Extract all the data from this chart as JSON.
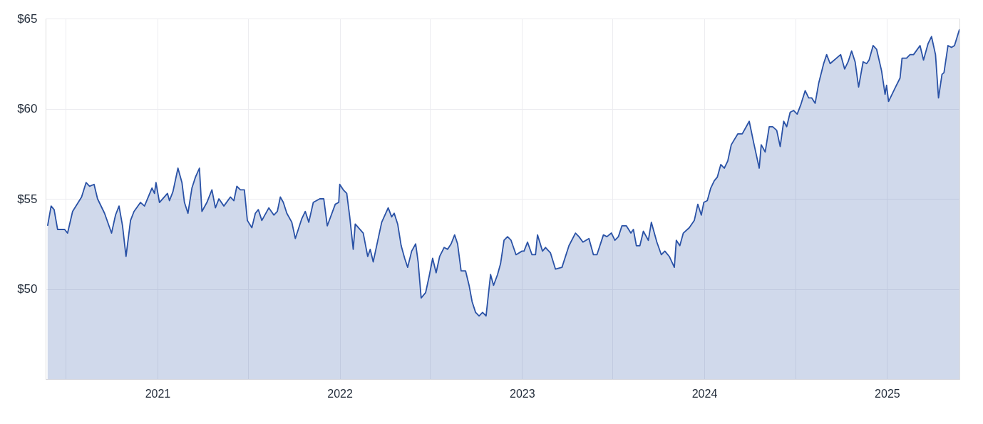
{
  "chart_data": {
    "type": "area",
    "x": [
      "2020-05-26",
      "2020-06-02",
      "2020-06-08",
      "2020-06-15",
      "2020-06-23",
      "2020-06-29",
      "2020-07-05",
      "2020-07-15",
      "2020-08-02",
      "2020-08-11",
      "2020-08-18",
      "2020-08-27",
      "2020-09-03",
      "2020-09-17",
      "2020-10-01",
      "2020-10-09",
      "2020-10-16",
      "2020-10-23",
      "2020-10-30",
      "2020-11-08",
      "2020-11-15",
      "2020-11-28",
      "2020-12-06",
      "2020-12-21",
      "2020-12-26",
      "2020-12-29",
      "2021-01-05",
      "2021-01-21",
      "2021-01-25",
      "2021-02-01",
      "2021-02-11",
      "2021-02-19",
      "2021-02-24",
      "2021-03-03",
      "2021-03-11",
      "2021-03-18",
      "2021-03-26",
      "2021-03-31",
      "2021-04-10",
      "2021-04-20",
      "2021-04-27",
      "2021-05-04",
      "2021-05-14",
      "2021-05-27",
      "2021-06-03",
      "2021-06-09",
      "2021-06-16",
      "2021-06-24",
      "2021-06-30",
      "2021-07-09",
      "2021-07-16",
      "2021-07-22",
      "2021-07-29",
      "2021-08-12",
      "2021-08-22",
      "2021-08-29",
      "2021-09-04",
      "2021-09-10",
      "2021-09-17",
      "2021-09-27",
      "2021-10-04",
      "2021-10-17",
      "2021-10-24",
      "2021-10-31",
      "2021-11-09",
      "2021-11-22",
      "2021-11-30",
      "2021-12-07",
      "2021-12-23",
      "2021-12-30",
      "2022-01-01",
      "2022-01-08",
      "2022-01-15",
      "2022-01-21",
      "2022-01-28",
      "2022-02-01",
      "2022-02-17",
      "2022-02-26",
      "2022-03-03",
      "2022-03-09",
      "2022-03-19",
      "2022-03-26",
      "2022-04-08",
      "2022-04-15",
      "2022-04-20",
      "2022-04-27",
      "2022-05-04",
      "2022-05-11",
      "2022-05-17",
      "2022-05-25",
      "2022-06-02",
      "2022-06-07",
      "2022-06-13",
      "2022-06-22",
      "2022-06-29",
      "2022-07-06",
      "2022-07-13",
      "2022-07-20",
      "2022-07-29",
      "2022-08-05",
      "2022-08-12",
      "2022-08-19",
      "2022-08-25",
      "2022-09-01",
      "2022-09-10",
      "2022-09-17",
      "2022-09-23",
      "2022-09-30",
      "2022-10-07",
      "2022-10-14",
      "2022-10-21",
      "2022-10-30",
      "2022-11-05",
      "2022-11-13",
      "2022-11-19",
      "2022-11-26",
      "2022-12-03",
      "2022-12-10",
      "2022-12-20",
      "2023-01-01",
      "2023-01-05",
      "2023-01-12",
      "2023-01-21",
      "2023-01-28",
      "2023-02-01",
      "2023-02-11",
      "2023-02-17",
      "2023-02-27",
      "2023-03-09",
      "2023-03-22",
      "2023-04-05",
      "2023-04-18",
      "2023-04-25",
      "2023-05-03",
      "2023-05-15",
      "2023-05-24",
      "2023-05-31",
      "2023-06-13",
      "2023-06-20",
      "2023-06-29",
      "2023-07-06",
      "2023-07-13",
      "2023-07-20",
      "2023-07-29",
      "2023-08-07",
      "2023-08-12",
      "2023-08-18",
      "2023-08-25",
      "2023-09-01",
      "2023-09-11",
      "2023-09-17",
      "2023-09-28",
      "2023-10-07",
      "2023-10-14",
      "2023-10-23",
      "2023-11-02",
      "2023-11-06",
      "2023-11-13",
      "2023-11-20",
      "2023-12-02",
      "2023-12-12",
      "2023-12-19",
      "2023-12-26",
      "2023-12-31",
      "2024-01-07",
      "2024-01-14",
      "2024-01-21",
      "2024-01-27",
      "2024-02-03",
      "2024-02-10",
      "2024-02-17",
      "2024-02-24",
      "2024-03-08",
      "2024-03-17",
      "2024-03-25",
      "2024-03-31",
      "2024-04-09",
      "2024-04-20",
      "2024-04-24",
      "2024-05-02",
      "2024-05-10",
      "2024-05-17",
      "2024-05-25",
      "2024-06-01",
      "2024-06-08",
      "2024-06-14",
      "2024-06-21",
      "2024-06-28",
      "2024-07-05",
      "2024-07-12",
      "2024-07-21",
      "2024-07-28",
      "2024-08-03",
      "2024-08-10",
      "2024-08-17",
      "2024-08-27",
      "2024-09-02",
      "2024-09-09",
      "2024-09-30",
      "2024-10-08",
      "2024-10-15",
      "2024-10-22",
      "2024-10-29",
      "2024-11-05",
      "2024-11-14",
      "2024-11-21",
      "2024-11-26",
      "2024-12-04",
      "2024-12-11",
      "2024-12-21",
      "2024-12-28",
      "2024-12-31",
      "2025-01-04",
      "2025-01-18",
      "2025-01-27",
      "2025-01-31",
      "2025-02-09",
      "2025-02-16",
      "2025-02-23",
      "2025-03-08",
      "2025-03-15",
      "2025-03-24",
      "2025-03-31",
      "2025-04-08",
      "2025-04-14",
      "2025-04-21",
      "2025-04-25",
      "2025-05-03",
      "2025-05-10",
      "2025-05-16",
      "2025-05-26"
    ],
    "series": [
      {
        "color": "#2a52a6",
        "values": [
          53.5,
          54.6,
          54.4,
          53.3,
          53.3,
          53.3,
          53.1,
          54.3,
          55.1,
          55.9,
          55.7,
          55.8,
          55.0,
          54.2,
          53.1,
          54.1,
          54.6,
          53.5,
          51.8,
          53.8,
          54.3,
          54.8,
          54.6,
          55.6,
          55.3,
          55.9,
          54.8,
          55.3,
          54.9,
          55.4,
          56.7,
          55.9,
          54.8,
          54.2,
          55.6,
          56.2,
          56.7,
          54.3,
          54.8,
          55.5,
          54.5,
          55.0,
          54.6,
          55.1,
          54.9,
          55.7,
          55.5,
          55.5,
          53.8,
          53.4,
          54.2,
          54.4,
          53.8,
          54.5,
          54.1,
          54.3,
          55.1,
          54.8,
          54.2,
          53.7,
          52.8,
          53.9,
          54.3,
          53.7,
          54.8,
          55.0,
          55.0,
          53.5,
          54.7,
          54.8,
          55.8,
          55.5,
          55.3,
          54.0,
          52.2,
          53.6,
          53.1,
          51.8,
          52.2,
          51.5,
          52.8,
          53.7,
          54.5,
          54.0,
          54.2,
          53.6,
          52.4,
          51.7,
          51.2,
          52.1,
          52.5,
          51.5,
          49.5,
          49.8,
          50.7,
          51.7,
          50.9,
          51.8,
          52.3,
          52.2,
          52.5,
          53.0,
          52.5,
          51.0,
          51.0,
          50.2,
          49.3,
          48.7,
          48.5,
          48.7,
          48.5,
          50.8,
          50.2,
          50.8,
          51.4,
          52.7,
          52.9,
          52.7,
          51.9,
          52.1,
          52.1,
          52.6,
          51.9,
          51.9,
          53.0,
          52.1,
          52.3,
          52.0,
          51.1,
          51.2,
          52.4,
          53.1,
          52.9,
          52.6,
          52.8,
          51.9,
          51.9,
          53.0,
          52.9,
          53.1,
          52.7,
          52.9,
          53.5,
          53.5,
          53.1,
          53.3,
          52.4,
          52.4,
          53.2,
          52.7,
          53.7,
          52.6,
          51.9,
          52.1,
          51.8,
          51.2,
          52.7,
          52.4,
          53.1,
          53.4,
          53.8,
          54.7,
          54.1,
          54.8,
          54.9,
          55.6,
          56.0,
          56.2,
          56.9,
          56.7,
          57.1,
          58.0,
          58.6,
          58.6,
          59.0,
          59.3,
          58.1,
          56.7,
          58.0,
          57.6,
          59.0,
          59.0,
          58.8,
          57.9,
          59.3,
          59.0,
          59.8,
          59.9,
          59.7,
          60.2,
          61.0,
          60.6,
          60.6,
          60.3,
          61.4,
          62.5,
          63.0,
          62.5,
          63.0,
          62.2,
          62.6,
          63.2,
          62.6,
          61.2,
          62.6,
          62.5,
          62.7,
          63.5,
          63.3,
          62.1,
          60.8,
          61.3,
          60.4,
          61.2,
          61.7,
          62.8,
          62.8,
          63.0,
          63.0,
          63.5,
          62.7,
          63.6,
          64.0,
          63.0,
          60.6,
          61.9,
          62.0,
          63.5,
          63.4,
          63.5,
          64.4
        ]
      }
    ],
    "xlim": [
      "2020-05-22",
      "2025-05-26"
    ],
    "xticks": [
      {
        "value": "2020-07",
        "label": null
      },
      "2021",
      {
        "value": "2021-07",
        "label": null
      },
      "2022",
      {
        "value": "2022-07",
        "label": null
      },
      "2023",
      {
        "value": "2023-07",
        "label": null
      },
      "2024",
      {
        "value": "2024-07",
        "label": null
      },
      "2025"
    ],
    "ylim": [
      45,
      65
    ],
    "yticks": [
      {
        "value": 50,
        "label": "$50"
      },
      {
        "value": 55,
        "label": "$55"
      },
      {
        "value": 60,
        "label": "$60"
      },
      {
        "value": 65,
        "label": "$65"
      }
    ],
    "grid": true
  }
}
